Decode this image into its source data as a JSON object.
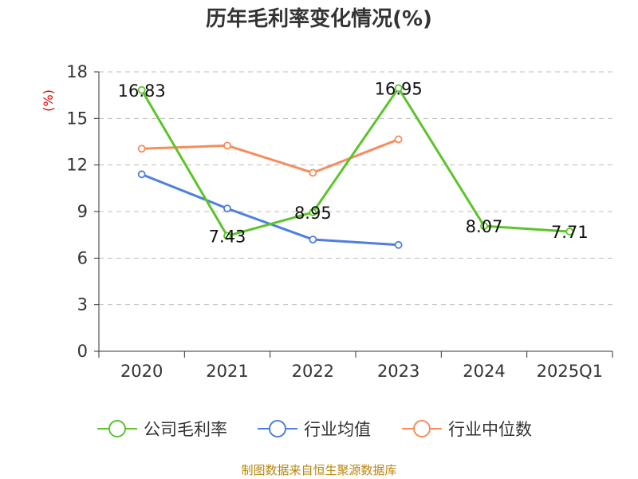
{
  "chart_data": {
    "type": "line",
    "title": "历年毛利率变化情况(%)",
    "ylabel": "(%)",
    "xlabel": "",
    "categories": [
      "2020",
      "2021",
      "2022",
      "2023",
      "2024",
      "2025Q1"
    ],
    "ylim": [
      0,
      18
    ],
    "yticks": [
      0,
      3,
      6,
      9,
      12,
      15,
      18
    ],
    "grid": true,
    "legend_position": "bottom",
    "series": [
      {
        "name": "公司毛利率",
        "color": "#5cc42a",
        "values": [
          16.83,
          7.43,
          8.95,
          16.95,
          8.07,
          7.71
        ],
        "labels": [
          "16.83",
          "7.43",
          "8.95",
          "16.95",
          "8.07",
          "7.71"
        ]
      },
      {
        "name": "行业均值",
        "color": "#4e7fdc",
        "values": [
          11.4,
          9.2,
          7.2,
          6.85,
          null,
          null
        ],
        "labels": []
      },
      {
        "name": "行业中位数",
        "color": "#f58d5c",
        "values": [
          13.05,
          13.25,
          11.5,
          13.65,
          null,
          null
        ],
        "labels": []
      }
    ]
  },
  "source": "制图数据来自恒生聚源数据库"
}
